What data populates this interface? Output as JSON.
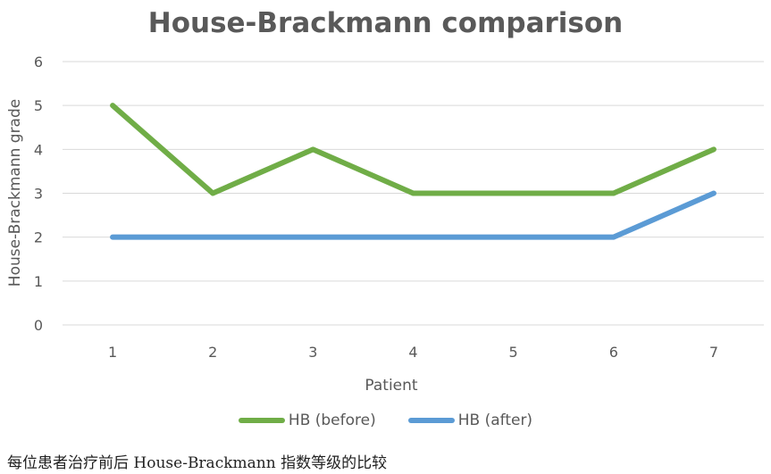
{
  "chart_data": {
    "type": "line",
    "title": "House-Brackmann comparison",
    "xlabel": "Patient",
    "ylabel": "House-Brackmann grade",
    "categories": [
      "1",
      "2",
      "3",
      "4",
      "5",
      "6",
      "7"
    ],
    "y_ticks": [
      "0",
      "1",
      "2",
      "3",
      "4",
      "5",
      "6"
    ],
    "ylim": [
      0,
      6
    ],
    "grid": true,
    "legend_position": "bottom",
    "series": [
      {
        "name": "HB (before)",
        "values": [
          5,
          3,
          4,
          3,
          3,
          3,
          4
        ],
        "color": "#70AD47"
      },
      {
        "name": "HB (after)",
        "values": [
          2,
          2,
          2,
          2,
          2,
          2,
          3
        ],
        "color": "#5B9BD5"
      }
    ]
  },
  "caption": "每位患者治疗前后 House-Brackmann 指数等级的比较"
}
